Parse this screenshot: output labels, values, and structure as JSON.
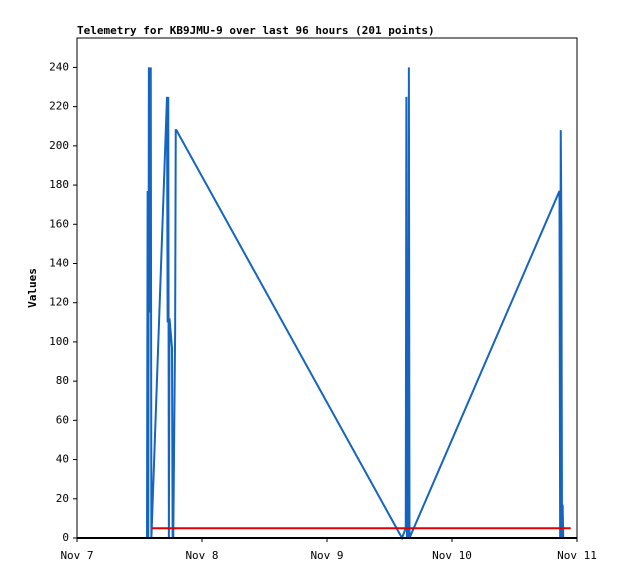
{
  "chart_data": {
    "type": "line",
    "title": "Telemetry for KB9JMU-9 over last 96 hours (201 points)",
    "y_label": "Values",
    "xlim": [
      0,
      4
    ],
    "xticks": [
      {
        "value": 0,
        "label": "Nov 7"
      },
      {
        "value": 1,
        "label": "Nov 8"
      },
      {
        "value": 2,
        "label": "Nov 9"
      },
      {
        "value": 3,
        "label": "Nov 10"
      },
      {
        "value": 4,
        "label": "Nov 11"
      }
    ],
    "ylim": [
      0,
      255
    ],
    "yticks": [
      0,
      20,
      40,
      60,
      80,
      100,
      120,
      140,
      160,
      180,
      200,
      220,
      240
    ],
    "series": [
      {
        "color": "#1565c0",
        "x": [
          0.56,
          0.565,
          0.57,
          0.575,
          0.58,
          0.585,
          0.59,
          0.595,
          0.72,
          0.725,
          0.73,
          0.735,
          0.74,
          0.76,
          0.765,
          0.77,
          0.785,
          0.79,
          0.795,
          2.6,
          2.63,
          2.635,
          2.64,
          2.65,
          2.655,
          2.66,
          3.86,
          3.865,
          3.87,
          3.875,
          3.88,
          3.885,
          3.89,
          3.895
        ],
        "values": [
          0,
          177,
          0,
          240,
          115,
          130,
          240,
          0,
          225,
          110,
          225,
          0,
          112,
          97,
          0,
          0,
          105,
          208,
          208,
          0,
          5,
          225,
          0,
          0,
          240,
          0,
          177,
          0,
          208,
          160,
          0,
          17,
          0,
          0
        ]
      },
      {
        "color": "#e00000",
        "x": [
          0.6,
          3.95
        ],
        "values": [
          5,
          5
        ]
      }
    ]
  }
}
